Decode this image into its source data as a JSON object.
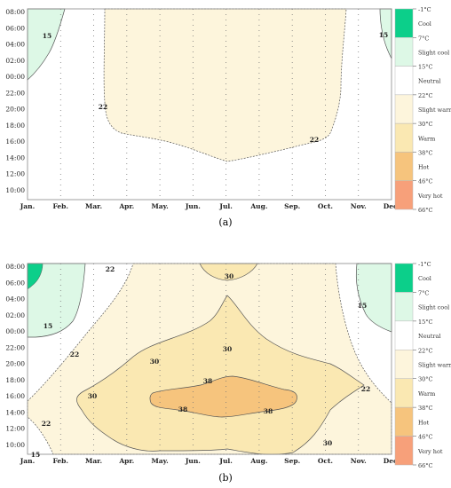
{
  "colors": {
    "cool": "#0ccf8a",
    "slight_cool": "#ddf8e6",
    "neutral": "#ffffff",
    "slight_warm": "#fdf5dc",
    "warm": "#fae8b2",
    "hot": "#f6c47d",
    "very_hot": "#f7a07a",
    "plot_border": "#888888",
    "contour_line": "#555555"
  },
  "legend": {
    "labels": [
      "Cool",
      "Slight cool",
      "Neutral",
      "Slight warm",
      "Warm",
      "Hot",
      "Very hot"
    ],
    "ticks": [
      "-1°C",
      "7°C",
      "15°C",
      "22°C",
      "30°C",
      "38°C",
      "46°C",
      "66°C"
    ]
  },
  "chart_data": [
    {
      "type": "heatmap",
      "panel_label": "(a)",
      "x_tick_labels": [
        "Jan.",
        "Feb.",
        "Mar.",
        "Apr.",
        "May.",
        "Jun.",
        "Jul.",
        "Aug.",
        "Sep.",
        "Oct.",
        "Nov.",
        "Dec."
      ],
      "y_tick_labels": [
        "08:00",
        "06:00",
        "04:00",
        "02:00",
        "00:00",
        "22:00",
        "20:00",
        "18:00",
        "16:00",
        "14:00",
        "12:00",
        "10:00"
      ],
      "contour_labels": [
        "15",
        "22",
        "22",
        "15"
      ],
      "zones": [
        "Slight cool",
        "Neutral",
        "Slight warm"
      ]
    },
    {
      "type": "heatmap",
      "panel_label": "(b)",
      "x_tick_labels": [
        "Jan.",
        "Feb.",
        "Mar.",
        "Apr.",
        "May.",
        "Jun.",
        "Jul.",
        "Aug.",
        "Sep.",
        "Oct.",
        "Nov.",
        "Dec."
      ],
      "y_tick_labels": [
        "08:00",
        "06:00",
        "04:00",
        "02:00",
        "00:00",
        "22:00",
        "20:00",
        "18:00",
        "16:00",
        "14:00",
        "12:00",
        "10:00"
      ],
      "contour_labels": [
        "15",
        "22",
        "22",
        "30",
        "30",
        "30",
        "38",
        "38",
        "38",
        "30",
        "22",
        "15",
        "15",
        "22",
        "30"
      ],
      "zones": [
        "Cool",
        "Slight cool",
        "Neutral",
        "Slight warm",
        "Warm",
        "Hot"
      ]
    }
  ]
}
